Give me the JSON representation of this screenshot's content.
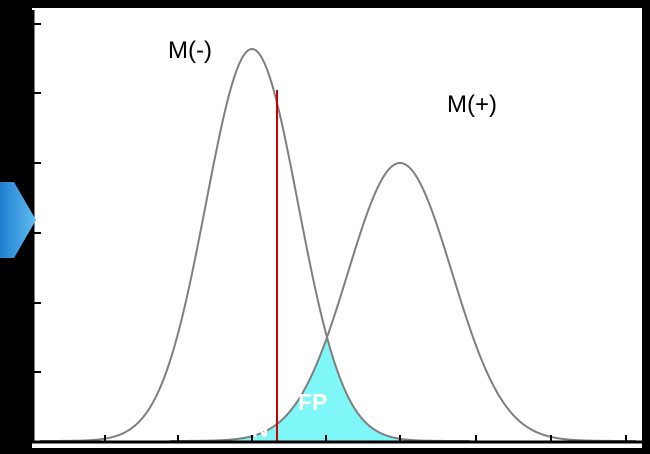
{
  "labels": {
    "negative_curve": "M(-)",
    "positive_curve": "M(+)",
    "false_negative": "FN",
    "false_positive": "FP"
  },
  "colors": {
    "background": "#000000",
    "plot_background": "#ffffff",
    "curves": "#7f7f7f",
    "threshold": "#cc0000",
    "overlap_fill": "#7ff6f8",
    "arrow": "#3d9fe0",
    "axes": "#000000"
  },
  "icons": {
    "arrow": "chevron-right-icon"
  }
}
